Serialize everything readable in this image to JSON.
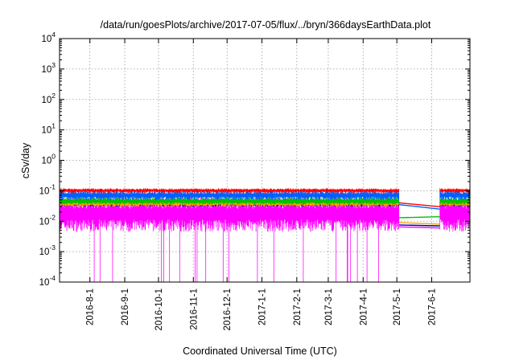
{
  "chart_data": {
    "type": "line",
    "title": "/data/run/goesPlots/archive/2017-07-05/flux/../bryn/366daysEarthData.plot",
    "xlabel": "Coordinated Universal Time (UTC)",
    "ylabel": "cSv/day",
    "yscale": "log",
    "ylim": [
      0.0001,
      10000
    ],
    "xlim": [
      "2016-07-05",
      "2017-07-05"
    ],
    "grid": true,
    "legend": "none",
    "x_ticks": [
      "2016-8-1",
      "2016-9-1",
      "2016-10-1",
      "2016-11-1",
      "2016-12-1",
      "2017-1-1",
      "2017-2-1",
      "2017-3-1",
      "2017-4-1",
      "2017-5-1",
      "2017-6-1"
    ],
    "y_ticks": [
      {
        "value": 0.0001,
        "base": "10",
        "exp": "-4"
      },
      {
        "value": 0.001,
        "base": "10",
        "exp": "-3"
      },
      {
        "value": 0.01,
        "base": "10",
        "exp": "-2"
      },
      {
        "value": 0.1,
        "base": "10",
        "exp": "-1"
      },
      {
        "value": 1,
        "base": "10",
        "exp": "0"
      },
      {
        "value": 10,
        "base": "10",
        "exp": "1"
      },
      {
        "value": 100,
        "base": "10",
        "exp": "2"
      },
      {
        "value": 1000,
        "base": "10",
        "exp": "3"
      },
      {
        "value": 10000,
        "base": "10",
        "exp": "4"
      }
    ],
    "data_gap": [
      "2017-05-03",
      "2017-06-08"
    ],
    "series": [
      {
        "color": "#ff0000",
        "band": [
          0.085,
          0.12
        ],
        "gap_endpoints": [
          0.04,
          0.03
        ]
      },
      {
        "color": "#0060ff",
        "band": [
          0.05,
          0.1
        ],
        "gap_endpoints": [
          0.035,
          0.025
        ]
      },
      {
        "color": "#00c000",
        "band": [
          0.035,
          0.06
        ],
        "gap_endpoints": [
          0.013,
          0.014
        ]
      },
      {
        "color": "#ffa500",
        "band": [
          0.03,
          0.05
        ],
        "gap_endpoints": [
          0.009,
          0.008
        ]
      },
      {
        "color": "#0000aa",
        "band": [
          0.03,
          0.045
        ],
        "gap_endpoints": [
          0.0075,
          0.007
        ]
      },
      {
        "color": "#ff00ff",
        "band": [
          0.0045,
          0.065
        ],
        "dips_to": 0.0001,
        "gap_endpoints": [
          0.0065,
          0.006
        ]
      }
    ]
  }
}
